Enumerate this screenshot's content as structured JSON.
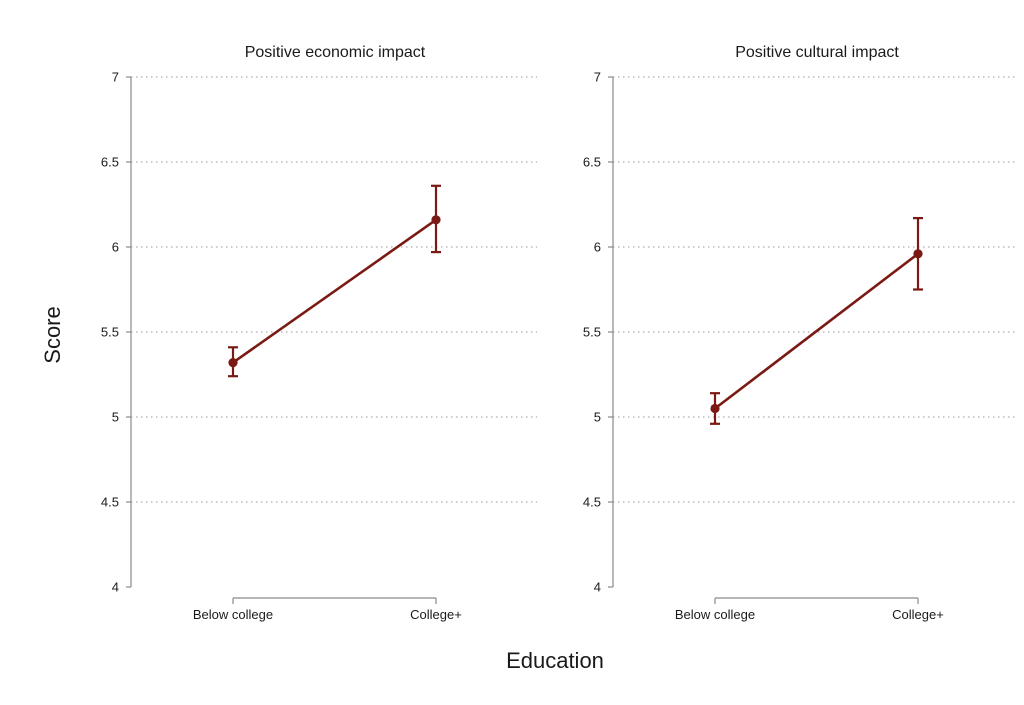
{
  "chart_data": {
    "type": "line",
    "ylabel": "Score",
    "xlabel": "Education",
    "categories": [
      "Below college",
      "College+"
    ],
    "ylim": [
      4,
      7
    ],
    "yticks": [
      "4",
      "4.5",
      "5",
      "5.5",
      "6",
      "6.5",
      "7"
    ],
    "grid": true,
    "series_color": "#7b1a14",
    "panels": [
      {
        "title": "Positive economic impact",
        "values": [
          5.32,
          6.16
        ],
        "ci_lower": [
          5.24,
          5.97
        ],
        "ci_upper": [
          5.41,
          6.36
        ]
      },
      {
        "title": "Positive cultural impact",
        "values": [
          5.05,
          5.96
        ],
        "ci_lower": [
          4.96,
          5.75
        ],
        "ci_upper": [
          5.14,
          6.17
        ]
      }
    ]
  }
}
